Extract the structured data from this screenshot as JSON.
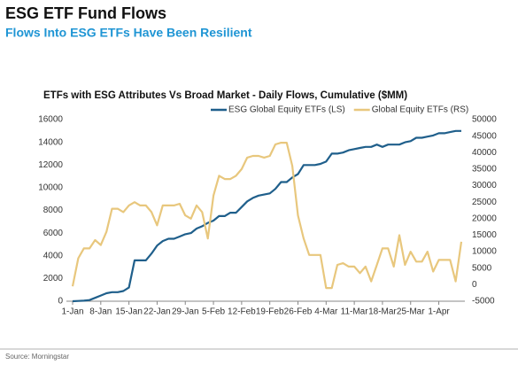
{
  "title": "ESG ETF Fund Flows",
  "subtitle": "Flows Into ESG ETFs Have Been Resilient",
  "source": "Source: Morningstar",
  "chart_data": {
    "type": "line",
    "title": "ETFs with ESG Attributes Vs Broad Market - Daily Flows, Cumulative ($MM)",
    "categories": [
      "1-Jan",
      null,
      null,
      null,
      null,
      "8-Jan",
      null,
      null,
      null,
      null,
      "15-Jan",
      null,
      null,
      null,
      null,
      "22-Jan",
      null,
      null,
      null,
      null,
      "29-Jan",
      null,
      null,
      null,
      null,
      "5-Feb",
      null,
      null,
      null,
      null,
      "12-Feb",
      null,
      null,
      null,
      null,
      "19-Feb",
      null,
      null,
      null,
      null,
      "26-Feb",
      null,
      null,
      null,
      null,
      "4-Mar",
      null,
      null,
      null,
      null,
      "11-Mar",
      null,
      null,
      null,
      null,
      "18-Mar",
      null,
      null,
      null,
      null,
      "25-Mar",
      null,
      null,
      null,
      null,
      "1-Apr",
      null,
      null,
      null,
      null
    ],
    "series": [
      {
        "name": "ESG Global Equity ETFs (LS)",
        "color": "#1f5f8b",
        "axis": "y",
        "values": [
          0,
          20,
          50,
          100,
          300,
          500,
          700,
          800,
          800,
          900,
          1200,
          3600,
          3600,
          3600,
          4200,
          4900,
          5300,
          5500,
          5500,
          5700,
          5900,
          6000,
          6400,
          6600,
          6900,
          7100,
          7500,
          7500,
          7800,
          7800,
          8300,
          8800,
          9100,
          9300,
          9400,
          9500,
          9900,
          10500,
          10500,
          10900,
          11200,
          12000,
          12000,
          12000,
          12100,
          12300,
          13000,
          13000,
          13100,
          13300,
          13400,
          13500,
          13600,
          13600,
          13800,
          13600,
          13800,
          13800,
          13800,
          14000,
          14100,
          14400,
          14400,
          14500,
          14600,
          14800,
          14800,
          14900,
          15000,
          15000
        ]
      },
      {
        "name": "Global Equity ETFs (RS)",
        "color": "#e8c77d",
        "axis": "y2",
        "values": [
          -500,
          8000,
          11000,
          11000,
          13500,
          12000,
          16000,
          23000,
          23000,
          22000,
          24000,
          25000,
          24000,
          24000,
          22000,
          18000,
          24000,
          24000,
          24000,
          24500,
          21000,
          20000,
          24000,
          22000,
          14000,
          27000,
          33000,
          32000,
          32000,
          33000,
          35000,
          38500,
          39000,
          39000,
          38500,
          39000,
          42500,
          43000,
          43000,
          36000,
          21000,
          14000,
          9000,
          9000,
          9000,
          -1000,
          -1000,
          6000,
          6500,
          5500,
          5500,
          3500,
          5500,
          1000,
          6000,
          11000,
          11000,
          5500,
          15000,
          6000,
          10000,
          7000,
          7000,
          10000,
          4000,
          7500,
          7500,
          7500,
          1000,
          13000
        ]
      }
    ],
    "ylim": [
      0,
      16000
    ],
    "yticks": [
      0,
      2000,
      4000,
      6000,
      8000,
      10000,
      12000,
      14000,
      16000
    ],
    "y2lim": [
      -5000,
      50000
    ],
    "y2ticks": [
      -5000,
      0,
      5000,
      10000,
      15000,
      20000,
      25000,
      30000,
      35000,
      40000,
      45000,
      50000
    ],
    "grid": false
  }
}
